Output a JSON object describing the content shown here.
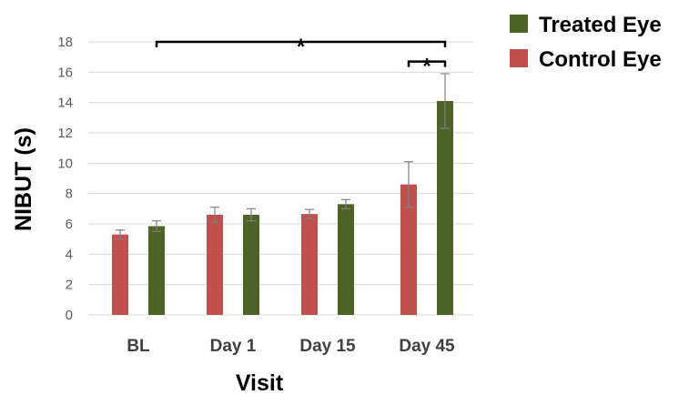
{
  "chart_data": {
    "type": "bar",
    "title": "",
    "xlabel": "Visit",
    "ylabel": "NIBUT (s)",
    "ylim": [
      0,
      18
    ],
    "yticks": [
      0,
      2,
      4,
      6,
      8,
      10,
      12,
      14,
      16,
      18
    ],
    "grid": true,
    "legend_position": "top-right",
    "categories": [
      "BL",
      "Day 1",
      "Day 15",
      "Day 45"
    ],
    "series": [
      {
        "name": "Control Eye",
        "color": "#c0504d",
        "values": [
          5.3,
          6.6,
          6.65,
          8.6
        ],
        "errors": [
          0.3,
          0.5,
          0.3,
          1.5
        ]
      },
      {
        "name": "Treated Eye",
        "color": "#4f6228",
        "values": [
          5.85,
          6.6,
          7.3,
          14.1
        ],
        "errors": [
          0.35,
          0.4,
          0.3,
          1.8
        ]
      }
    ],
    "legend_order": [
      1,
      0
    ],
    "annotations": [
      {
        "type": "significance",
        "label": "*",
        "from": {
          "category": 0,
          "series": 1
        },
        "to": {
          "category": 3,
          "series": 1
        },
        "y": 18.0
      },
      {
        "type": "significance",
        "label": "*",
        "from": {
          "category": 3,
          "series": 0
        },
        "to": {
          "category": 3,
          "series": 1
        },
        "y": 16.7
      }
    ]
  }
}
